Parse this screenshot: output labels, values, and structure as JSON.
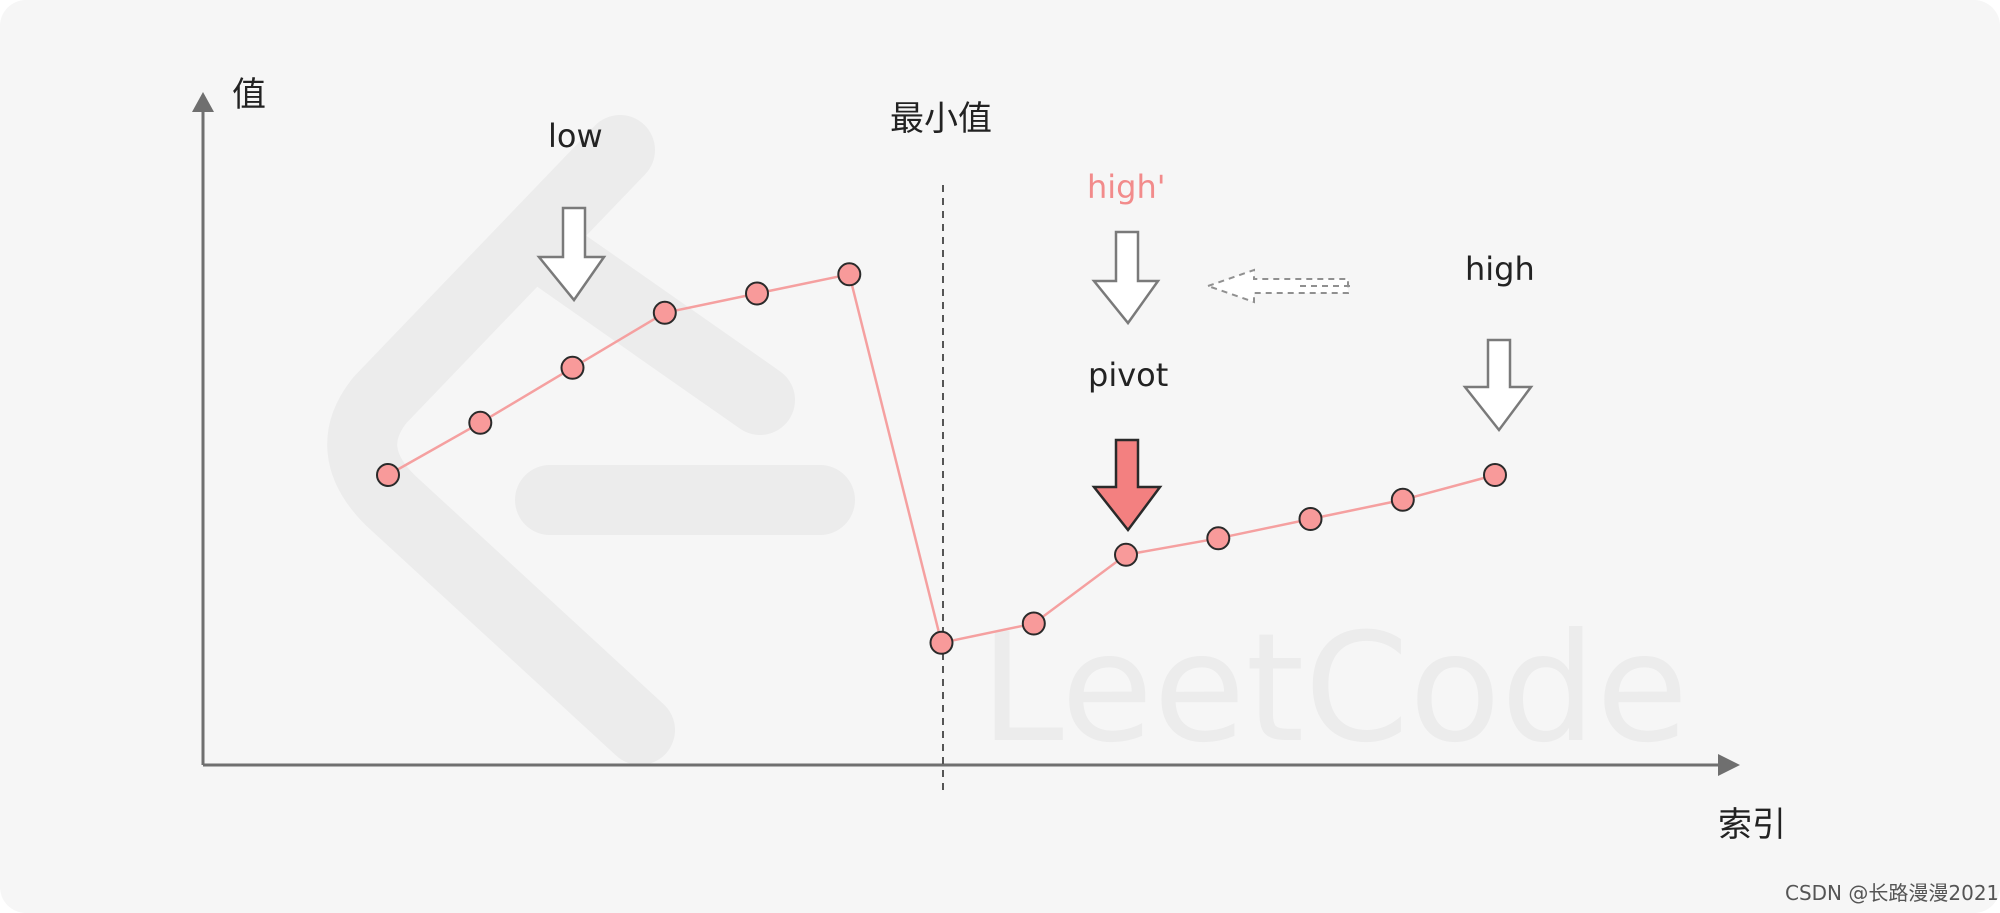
{
  "axes": {
    "y_label": "值",
    "x_label": "索引"
  },
  "labels": {
    "min_value": "最小值",
    "low": "low",
    "high_prime": "high'",
    "pivot": "pivot",
    "high": "high"
  },
  "watermark": {
    "text": "LeetCode"
  },
  "credit": "CSDN @长路漫漫2021",
  "series": {
    "values": [
      0.0,
      0.19,
      0.39,
      0.59,
      0.66,
      0.73,
      -0.61,
      -0.54,
      -0.29,
      -0.23,
      -0.16,
      -0.09,
      0.0
    ]
  },
  "colors": {
    "point_fill": "#f89a9a",
    "line": "#f5a0a0",
    "axis": "#6f6f6f",
    "pivot_arrow": "#f38080",
    "high_prime_text": "#f28b8b"
  }
}
